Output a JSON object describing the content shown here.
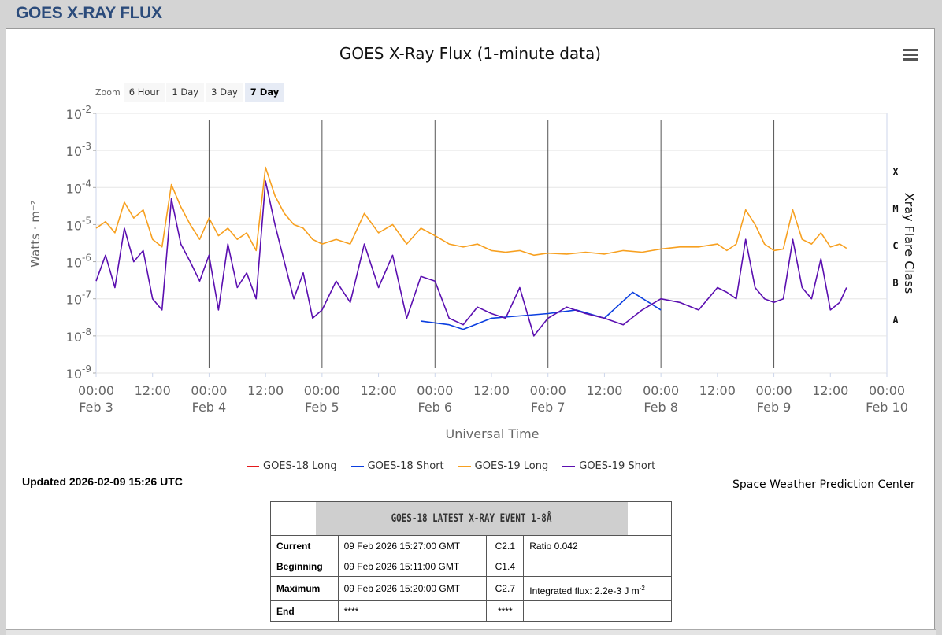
{
  "page": {
    "title": "GOES X-RAY FLUX"
  },
  "menu": {
    "icon": "hamburger-menu-icon"
  },
  "zoom": {
    "label": "Zoom",
    "buttons": [
      "6 Hour",
      "1 Day",
      "3 Day",
      "7 Day"
    ],
    "active": "7 Day"
  },
  "updated": "Updated 2026-02-09 15:26 UTC",
  "credit": "Space Weather Prediction Center",
  "chart_data": {
    "type": "line",
    "title": "GOES X-Ray Flux (1-minute data)",
    "xlabel": "Universal Time",
    "ylabel": "Watts · m⁻²",
    "y2label": "Xray Flare Class",
    "yscale": "log",
    "ylim": [
      1e-09,
      0.01
    ],
    "ytick_labels": [
      {
        "base": "10",
        "exp": "-9"
      },
      {
        "base": "10",
        "exp": "-8"
      },
      {
        "base": "10",
        "exp": "-7"
      },
      {
        "base": "10",
        "exp": "-6"
      },
      {
        "base": "10",
        "exp": "-5"
      },
      {
        "base": "10",
        "exp": "-4"
      },
      {
        "base": "10",
        "exp": "-3"
      },
      {
        "base": "10",
        "exp": "-2"
      }
    ],
    "xlim": [
      "2026-02-03 00:00",
      "2026-02-10 00:00"
    ],
    "xtick_labels": [
      {
        "time": "00:00",
        "date": "Feb 3"
      },
      {
        "time": "12:00",
        "date": ""
      },
      {
        "time": "00:00",
        "date": "Feb 4"
      },
      {
        "time": "12:00",
        "date": ""
      },
      {
        "time": "00:00",
        "date": "Feb 5"
      },
      {
        "time": "12:00",
        "date": ""
      },
      {
        "time": "00:00",
        "date": "Feb 6"
      },
      {
        "time": "12:00",
        "date": ""
      },
      {
        "time": "00:00",
        "date": "Feb 7"
      },
      {
        "time": "12:00",
        "date": ""
      },
      {
        "time": "00:00",
        "date": "Feb 8"
      },
      {
        "time": "12:00",
        "date": ""
      },
      {
        "time": "00:00",
        "date": "Feb 9"
      },
      {
        "time": "12:00",
        "date": ""
      },
      {
        "time": "00:00",
        "date": "Feb 10"
      }
    ],
    "flare_classes": [
      {
        "label": "X",
        "level": 0.0001
      },
      {
        "label": "M",
        "level": 1e-05
      },
      {
        "label": "C",
        "level": 1e-06
      },
      {
        "label": "B",
        "level": 1e-07
      },
      {
        "label": "A",
        "level": 1e-08
      }
    ],
    "day_boundaries": [
      "2026-02-04 00:00",
      "2026-02-05 00:00",
      "2026-02-06 00:00",
      "2026-02-07 00:00",
      "2026-02-08 00:00",
      "2026-02-09 00:00"
    ],
    "grid": true,
    "legend_position": "bottom",
    "series": [
      {
        "name": "GOES-18 Long",
        "color": "#e41a1c",
        "x": [],
        "y": []
      },
      {
        "name": "GOES-18 Short",
        "color": "#0b3fe0",
        "x": [
          "2026-02-05 21:00",
          "2026-02-06 03:00",
          "2026-02-06 06:00",
          "2026-02-06 12:00",
          "2026-02-07 00:00",
          "2026-02-07 06:00",
          "2026-02-07 12:00",
          "2026-02-07 18:00",
          "2026-02-08 00:00"
        ],
        "y": [
          2.5e-08,
          2e-08,
          1.5e-08,
          3e-08,
          4e-08,
          5e-08,
          3e-08,
          1.5e-07,
          5e-08
        ]
      },
      {
        "name": "GOES-19 Long",
        "color": "#f7a020",
        "x": [
          "2026-02-03 00:00",
          "2026-02-03 02:00",
          "2026-02-03 04:00",
          "2026-02-03 06:00",
          "2026-02-03 08:00",
          "2026-02-03 10:00",
          "2026-02-03 12:00",
          "2026-02-03 14:00",
          "2026-02-03 16:00",
          "2026-02-03 18:00",
          "2026-02-03 20:00",
          "2026-02-03 22:00",
          "2026-02-04 00:00",
          "2026-02-04 02:00",
          "2026-02-04 04:00",
          "2026-02-04 06:00",
          "2026-02-04 08:00",
          "2026-02-04 10:00",
          "2026-02-04 12:00",
          "2026-02-04 14:00",
          "2026-02-04 16:00",
          "2026-02-04 18:00",
          "2026-02-04 20:00",
          "2026-02-04 22:00",
          "2026-02-05 00:00",
          "2026-02-05 03:00",
          "2026-02-05 06:00",
          "2026-02-05 09:00",
          "2026-02-05 12:00",
          "2026-02-05 15:00",
          "2026-02-05 18:00",
          "2026-02-05 21:00",
          "2026-02-06 00:00",
          "2026-02-06 03:00",
          "2026-02-06 06:00",
          "2026-02-06 09:00",
          "2026-02-06 12:00",
          "2026-02-06 15:00",
          "2026-02-06 18:00",
          "2026-02-06 21:00",
          "2026-02-07 00:00",
          "2026-02-07 04:00",
          "2026-02-07 08:00",
          "2026-02-07 12:00",
          "2026-02-07 16:00",
          "2026-02-07 20:00",
          "2026-02-08 00:00",
          "2026-02-08 04:00",
          "2026-02-08 08:00",
          "2026-02-08 12:00",
          "2026-02-08 14:00",
          "2026-02-08 16:00",
          "2026-02-08 18:00",
          "2026-02-08 20:00",
          "2026-02-08 22:00",
          "2026-02-09 00:00",
          "2026-02-09 02:00",
          "2026-02-09 04:00",
          "2026-02-09 06:00",
          "2026-02-09 08:00",
          "2026-02-09 10:00",
          "2026-02-09 12:00",
          "2026-02-09 14:00",
          "2026-02-09 15:26"
        ],
        "y": [
          8e-06,
          1.2e-05,
          6e-06,
          4e-05,
          1.5e-05,
          2.5e-05,
          4e-06,
          2.5e-06,
          0.00012,
          3e-05,
          1e-05,
          4e-06,
          1.5e-05,
          5e-06,
          8e-06,
          4e-06,
          6e-06,
          2e-06,
          0.00035,
          6e-05,
          2e-05,
          1e-05,
          8e-06,
          4e-06,
          3e-06,
          4e-06,
          3e-06,
          2e-05,
          6e-06,
          1e-05,
          3e-06,
          8e-06,
          5e-06,
          3e-06,
          2.5e-06,
          3e-06,
          2e-06,
          1.8e-06,
          2e-06,
          1.5e-06,
          1.7e-06,
          1.6e-06,
          1.8e-06,
          1.6e-06,
          2e-06,
          1.8e-06,
          2.2e-06,
          2.5e-06,
          2.5e-06,
          3e-06,
          2e-06,
          3e-06,
          2.5e-05,
          1e-05,
          3e-06,
          2e-06,
          2.2e-06,
          2.5e-05,
          4e-06,
          3e-06,
          6e-06,
          2.5e-06,
          3e-06,
          2.3e-06
        ]
      },
      {
        "name": "GOES-19 Short",
        "color": "#5b0fb0",
        "x": [
          "2026-02-03 00:00",
          "2026-02-03 02:00",
          "2026-02-03 04:00",
          "2026-02-03 06:00",
          "2026-02-03 08:00",
          "2026-02-03 10:00",
          "2026-02-03 12:00",
          "2026-02-03 14:00",
          "2026-02-03 16:00",
          "2026-02-03 18:00",
          "2026-02-03 20:00",
          "2026-02-03 22:00",
          "2026-02-04 00:00",
          "2026-02-04 02:00",
          "2026-02-04 04:00",
          "2026-02-04 06:00",
          "2026-02-04 08:00",
          "2026-02-04 10:00",
          "2026-02-04 12:00",
          "2026-02-04 14:00",
          "2026-02-04 16:00",
          "2026-02-04 18:00",
          "2026-02-04 20:00",
          "2026-02-04 22:00",
          "2026-02-05 00:00",
          "2026-02-05 03:00",
          "2026-02-05 06:00",
          "2026-02-05 09:00",
          "2026-02-05 12:00",
          "2026-02-05 15:00",
          "2026-02-05 18:00",
          "2026-02-05 21:00",
          "2026-02-06 00:00",
          "2026-02-06 03:00",
          "2026-02-06 06:00",
          "2026-02-06 09:00",
          "2026-02-06 12:00",
          "2026-02-06 15:00",
          "2026-02-06 18:00",
          "2026-02-06 21:00",
          "2026-02-07 00:00",
          "2026-02-07 04:00",
          "2026-02-07 08:00",
          "2026-02-07 12:00",
          "2026-02-07 16:00",
          "2026-02-07 20:00",
          "2026-02-08 00:00",
          "2026-02-08 04:00",
          "2026-02-08 08:00",
          "2026-02-08 12:00",
          "2026-02-08 14:00",
          "2026-02-08 16:00",
          "2026-02-08 18:00",
          "2026-02-08 20:00",
          "2026-02-08 22:00",
          "2026-02-09 00:00",
          "2026-02-09 02:00",
          "2026-02-09 04:00",
          "2026-02-09 06:00",
          "2026-02-09 08:00",
          "2026-02-09 10:00",
          "2026-02-09 12:00",
          "2026-02-09 14:00",
          "2026-02-09 15:26"
        ],
        "y": [
          3e-07,
          1.5e-06,
          2e-07,
          8e-06,
          1e-06,
          2e-06,
          1e-07,
          5e-08,
          5e-05,
          3e-06,
          1e-06,
          3e-07,
          1.5e-06,
          5e-08,
          3e-06,
          2e-07,
          5e-07,
          1e-07,
          0.00015,
          1e-05,
          1e-06,
          1e-07,
          5e-07,
          3e-08,
          5e-08,
          3e-07,
          8e-08,
          3e-06,
          2e-07,
          1.5e-06,
          3e-08,
          4e-07,
          3e-07,
          3e-08,
          2e-08,
          6e-08,
          4e-08,
          3e-08,
          2e-07,
          1e-08,
          3e-08,
          6e-08,
          4e-08,
          3e-08,
          2e-08,
          5e-08,
          1e-07,
          8e-08,
          5e-08,
          2e-07,
          1.5e-07,
          1e-07,
          4e-06,
          2e-07,
          1e-07,
          8e-08,
          1e-07,
          4e-06,
          2e-07,
          1e-07,
          1.2e-06,
          5e-08,
          8e-08,
          2e-07
        ]
      }
    ]
  },
  "event": {
    "header": "GOES-18 LATEST X-RAY EVENT 1-8Å",
    "rows": [
      {
        "label": "Current",
        "time": "09 Feb 2026 15:27:00 GMT",
        "cls": "C2.1",
        "note": "Ratio 0.042",
        "note_sup": ""
      },
      {
        "label": "Beginning",
        "time": "09 Feb 2026 15:11:00 GMT",
        "cls": "C1.4",
        "note": "",
        "note_sup": ""
      },
      {
        "label": "Maximum",
        "time": "09 Feb 2026 15:20:00 GMT",
        "cls": "C2.7",
        "note": "Integrated flux: 2.2e-3 J m",
        "note_sup": "-2"
      },
      {
        "label": "End",
        "time": "****",
        "cls": "****",
        "note": "",
        "note_sup": ""
      }
    ]
  }
}
